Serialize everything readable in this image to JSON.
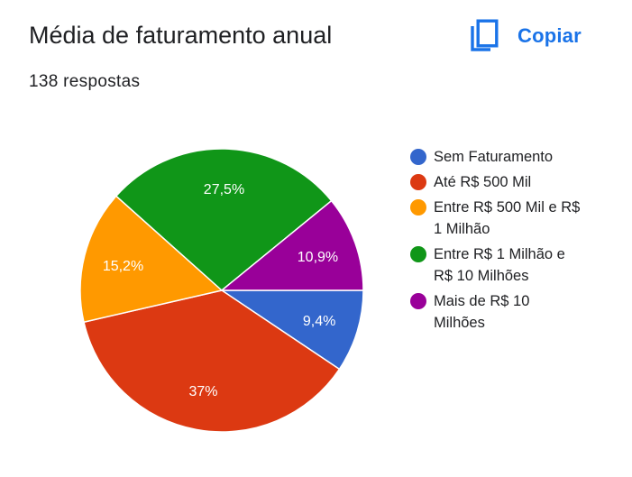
{
  "header": {
    "title": "Média de faturamento anual",
    "responses": "138 respostas",
    "copy_label": "Copiar",
    "copy_icon": "copy-icon",
    "accent_color": "#1a73e8"
  },
  "chart_data": {
    "type": "pie",
    "title": "Média de faturamento anual",
    "slices": [
      {
        "label": "Sem Faturamento",
        "value": 9.4,
        "display": "9,4%",
        "color": "#3366cc"
      },
      {
        "label": "Até R$ 500 Mil",
        "value": 37.0,
        "display": "37%",
        "color": "#dc3912"
      },
      {
        "label": "Entre R$ 500 Mil e R$ 1 Milhão",
        "value": 15.2,
        "display": "15,2%",
        "color": "#ff9900"
      },
      {
        "label": "Entre R$ 1 Milhão e R$ 10 Milhões",
        "value": 27.5,
        "display": "27,5%",
        "color": "#109618"
      },
      {
        "label": "Mais de R$ 10 Milhões",
        "value": 10.9,
        "display": "10,9%",
        "color": "#990099"
      }
    ],
    "legend_position": "right",
    "start_angle_deg": 90,
    "direction": "clockwise"
  },
  "legend": {
    "items": [
      {
        "lines": [
          "Sem Faturamento"
        ],
        "color": "#3366cc"
      },
      {
        "lines": [
          "Até R$ 500 Mil"
        ],
        "color": "#dc3912"
      },
      {
        "lines": [
          "Entre R$ 500 Mil e R$",
          "1 Milhão"
        ],
        "color": "#ff9900"
      },
      {
        "lines": [
          "Entre R$ 1 Milhão e",
          "R$ 10 Milhões"
        ],
        "color": "#109618"
      },
      {
        "lines": [
          "Mais de R$ 10",
          "Milhões"
        ],
        "color": "#990099"
      }
    ]
  }
}
